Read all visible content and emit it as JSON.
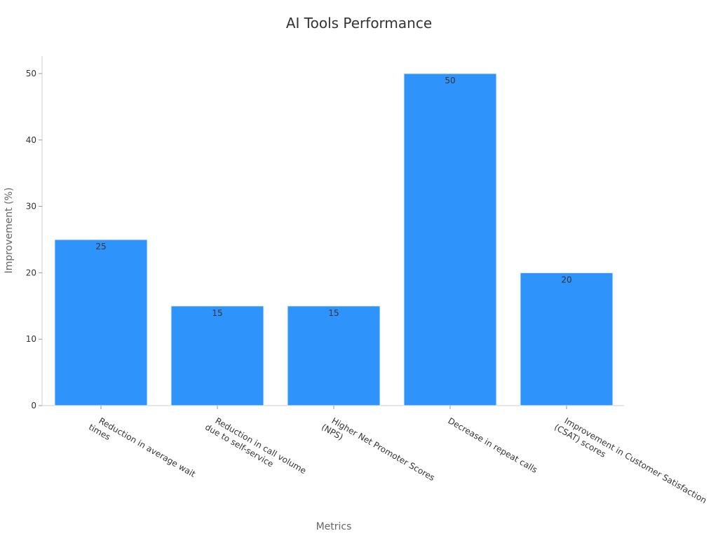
{
  "chart_data": {
    "type": "bar",
    "title": "AI Tools Performance",
    "xlabel": "Metrics",
    "ylabel": "Improvement (%)",
    "categories": [
      [
        "Reduction in average wait",
        "times"
      ],
      [
        "Reduction in call volume",
        "due to self-service"
      ],
      [
        "Higher Net Promoter Scores",
        "(NPS)"
      ],
      [
        "Decrease in repeat calls"
      ],
      [
        "Improvement in Customer Satisfaction",
        "(CSAT) scores"
      ]
    ],
    "values": [
      25,
      15,
      15,
      50,
      20
    ],
    "ylim": [
      0,
      52.5
    ],
    "yticks": [
      0,
      10,
      20,
      30,
      40,
      50
    ],
    "bar_color": "#2e93fa",
    "grid": false,
    "legend": "none"
  }
}
